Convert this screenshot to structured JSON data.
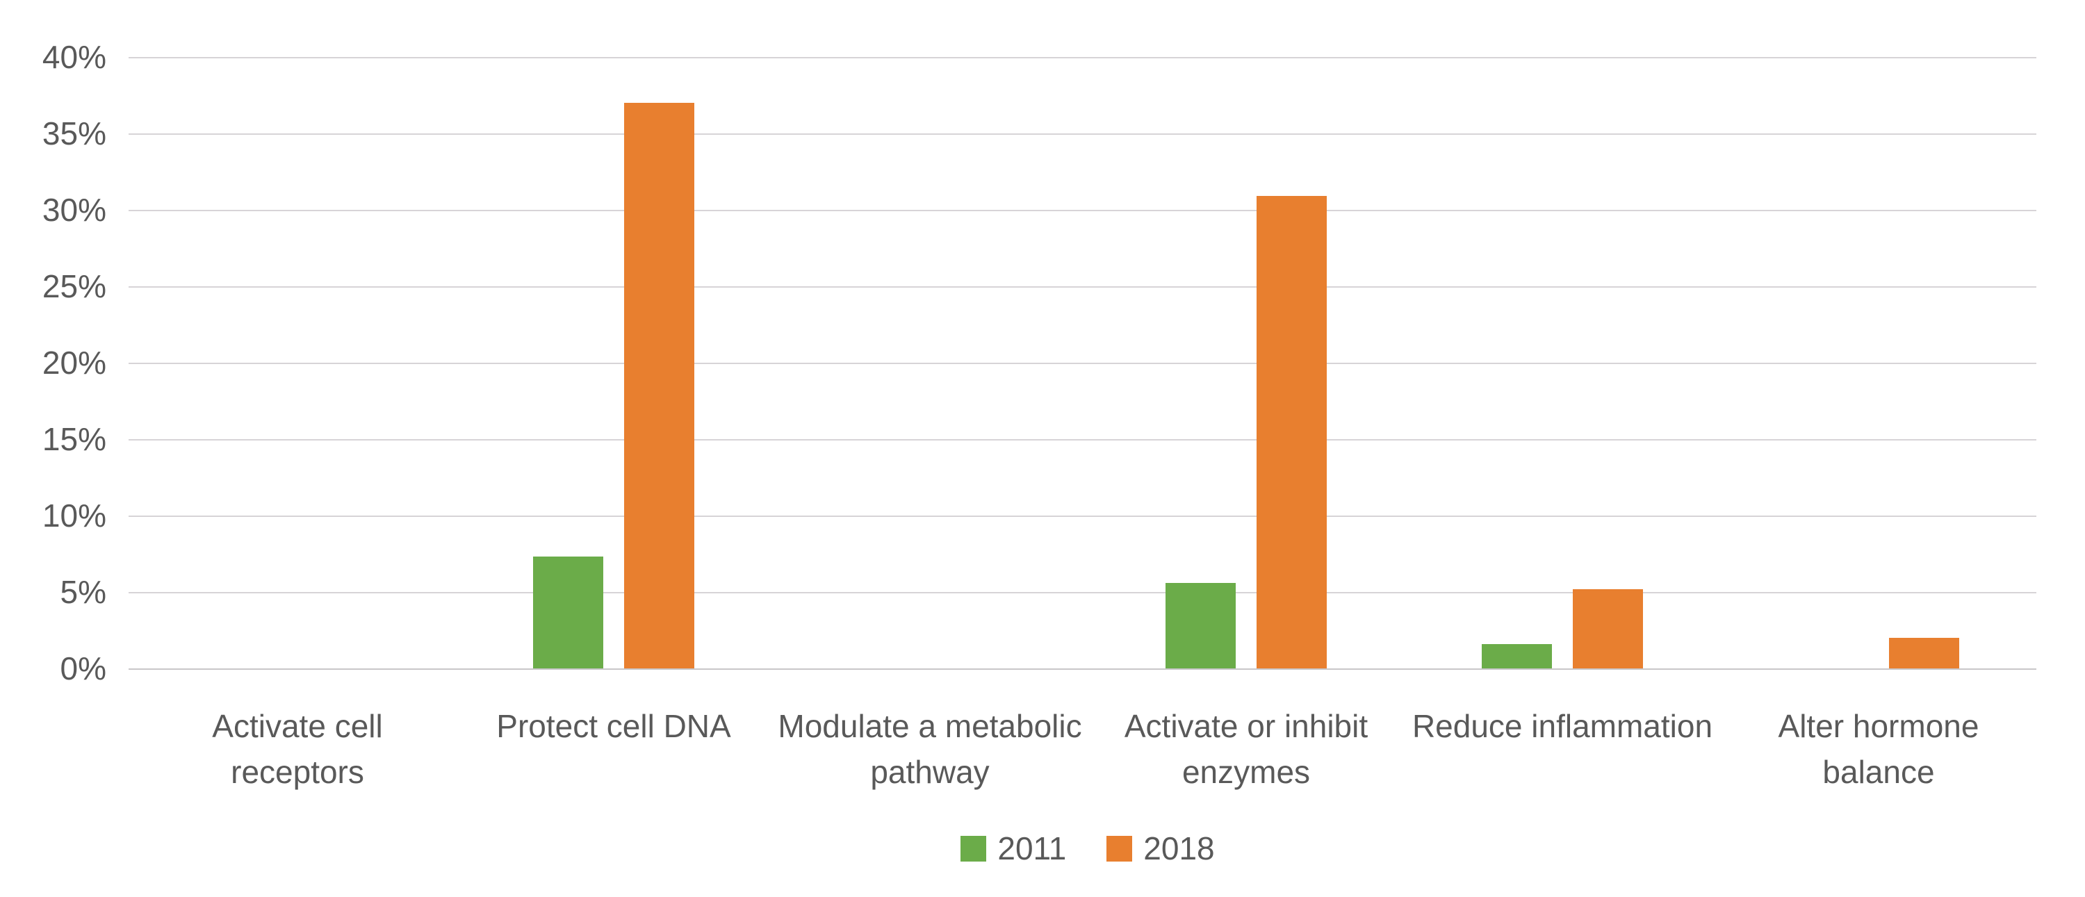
{
  "chart_data": {
    "type": "bar",
    "title": "",
    "xlabel": "",
    "ylabel": "",
    "categories": [
      "Activate cell receptors",
      "Protect cell DNA",
      "Modulate a metabolic pathway",
      "Activate or inhibit enzymes",
      "Reduce inflammation",
      "Alter hormone balance"
    ],
    "series": [
      {
        "name": "2011",
        "color": "#6BAC49",
        "values": [
          0,
          7.3,
          0,
          5.6,
          1.6,
          0
        ]
      },
      {
        "name": "2018",
        "color": "#E87F2F",
        "values": [
          0,
          37,
          0,
          30.9,
          5.2,
          2.0
        ]
      }
    ],
    "ylim": [
      0,
      40
    ],
    "ytick_step": 5,
    "ytick_labels": [
      "0%",
      "5%",
      "10%",
      "15%",
      "20%",
      "25%",
      "30%",
      "35%",
      "40%"
    ],
    "grid": true,
    "legend_position": "bottom-center",
    "colors": {
      "gridline": "#D7D4D7",
      "axis_baseline": "#C9C6C9",
      "text": "#595959",
      "background": "#FFFFFF"
    }
  }
}
